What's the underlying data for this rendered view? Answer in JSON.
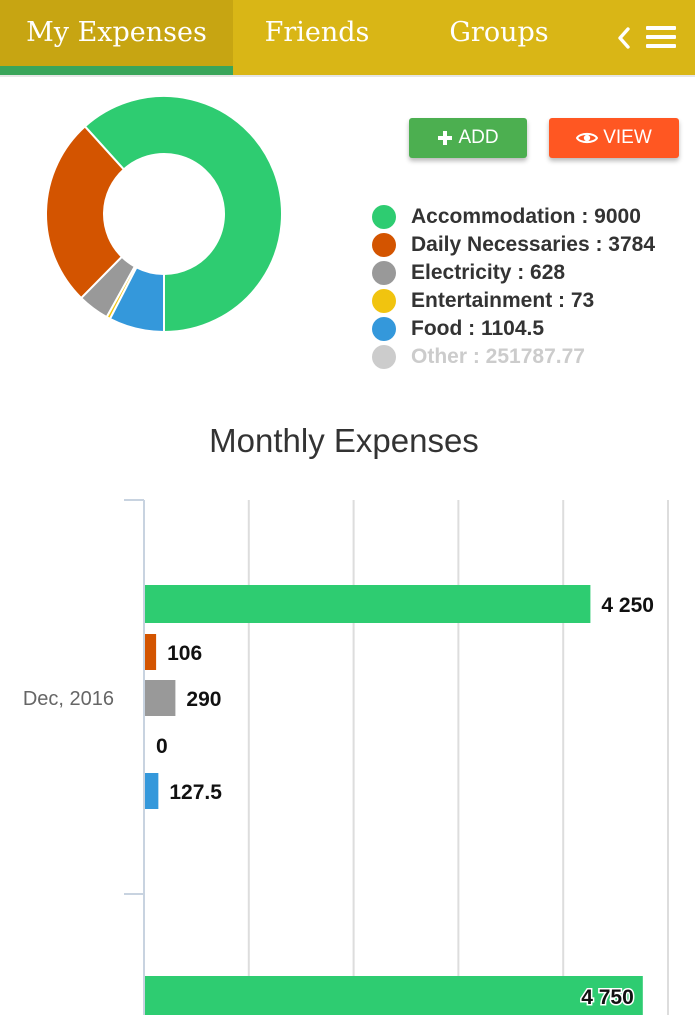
{
  "tabs": [
    {
      "label": "My Expenses",
      "active": true
    },
    {
      "label": "Friends",
      "active": false
    },
    {
      "label": "Groups",
      "active": false
    }
  ],
  "icons": {
    "back": "chevron-left-icon",
    "menu": "hamburger-menu-icon",
    "add": "plus-icon",
    "view": "eye-icon"
  },
  "buttons": {
    "add_label": "ADD",
    "view_label": "VIEW"
  },
  "colors": {
    "header": "#d9b616",
    "active_tab_underline": "#3aa55a",
    "add_button": "#4caf50",
    "view_button": "#ff5722"
  },
  "legend": [
    {
      "label": "Accommodation : 9000",
      "color": "#2ecc71"
    },
    {
      "label": "Daily Necessaries : 3784",
      "color": "#d35400"
    },
    {
      "label": "Electricity : 628",
      "color": "#999999"
    },
    {
      "label": "Entertainment : 73",
      "color": "#f1c40f"
    },
    {
      "label": "Food : 1104.5",
      "color": "#3498db"
    },
    {
      "label": "Other : 251787.77",
      "color": "#cccccc",
      "hidden": true
    }
  ],
  "chart_data": [
    {
      "type": "pie",
      "categories": [
        "Accommodation",
        "Daily Necessaries",
        "Electricity",
        "Entertainment",
        "Food",
        "Other"
      ],
      "values": [
        9000,
        3784,
        628,
        73,
        1104.5,
        251787.77
      ],
      "hidden": [
        "Other"
      ],
      "colors": [
        "#2ecc71",
        "#d35400",
        "#999999",
        "#f1c40f",
        "#3498db",
        "#cccccc"
      ],
      "legend": "right"
    },
    {
      "type": "bar",
      "orientation": "horizontal",
      "title": "Monthly Expenses",
      "categories": [
        "Dec, 2016"
      ],
      "series": [
        {
          "name": "Accommodation",
          "values": [
            4250
          ],
          "color": "#2ecc71"
        },
        {
          "name": "Daily Necessaries",
          "values": [
            106
          ],
          "color": "#d35400"
        },
        {
          "name": "Electricity",
          "values": [
            290
          ],
          "color": "#999999"
        },
        {
          "name": "Entertainment",
          "values": [
            0
          ],
          "color": "#f1c40f"
        },
        {
          "name": "Food",
          "values": [
            127.5
          ],
          "color": "#3498db"
        }
      ],
      "value_labels": [
        "4 250",
        "106",
        "290",
        "0",
        "127.5"
      ],
      "partial_next_bar": {
        "value": 4750,
        "label": "4 750",
        "color": "#2ecc71"
      },
      "xlim": [
        0,
        5000
      ],
      "grid": true
    }
  ]
}
